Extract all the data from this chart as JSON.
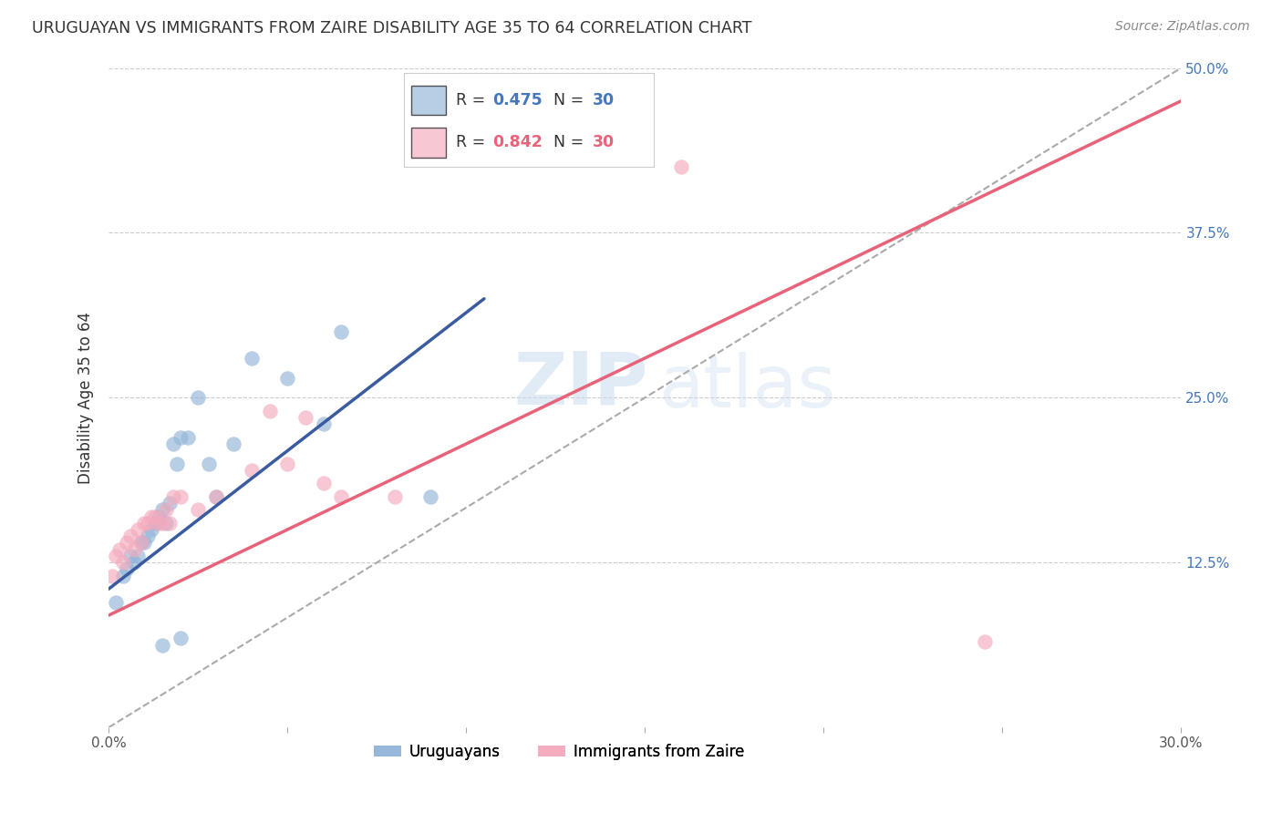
{
  "title": "URUGUAYAN VS IMMIGRANTS FROM ZAIRE DISABILITY AGE 35 TO 64 CORRELATION CHART",
  "source": "Source: ZipAtlas.com",
  "ylabel": "Disability Age 35 to 64",
  "x_min": 0.0,
  "x_max": 0.3,
  "y_min": 0.0,
  "y_max": 0.5,
  "x_ticks": [
    0.0,
    0.05,
    0.1,
    0.15,
    0.2,
    0.25,
    0.3
  ],
  "x_tick_labels": [
    "0.0%",
    "",
    "",
    "",
    "",
    "",
    "30.0%"
  ],
  "y_ticks": [
    0.0,
    0.125,
    0.25,
    0.375,
    0.5
  ],
  "y_tick_right_labels": [
    "",
    "12.5%",
    "25.0%",
    "37.5%",
    "50.0%"
  ],
  "blue_color": "#92B4D8",
  "pink_color": "#F4AABC",
  "blue_line_color": "#3A5BA0",
  "pink_line_color": "#E8637A",
  "blue_line_x": [
    0.0,
    0.105
  ],
  "blue_line_y": [
    0.105,
    0.325
  ],
  "pink_line_x": [
    0.0,
    0.3
  ],
  "pink_line_y": [
    0.085,
    0.475
  ],
  "diag_line_x": [
    0.0,
    0.3
  ],
  "diag_line_y": [
    0.0,
    0.5
  ],
  "uruguayan_label": "Uruguayans",
  "zaire_label": "Immigrants from Zaire",
  "uru_x": [
    0.002,
    0.004,
    0.005,
    0.006,
    0.007,
    0.008,
    0.009,
    0.01,
    0.011,
    0.012,
    0.013,
    0.014,
    0.015,
    0.016,
    0.017,
    0.018,
    0.019,
    0.02,
    0.022,
    0.025,
    0.028,
    0.03,
    0.035,
    0.04,
    0.05,
    0.06,
    0.065,
    0.09,
    0.015,
    0.02
  ],
  "uru_y": [
    0.095,
    0.115,
    0.12,
    0.13,
    0.125,
    0.13,
    0.14,
    0.14,
    0.145,
    0.15,
    0.155,
    0.16,
    0.165,
    0.155,
    0.17,
    0.215,
    0.2,
    0.22,
    0.22,
    0.25,
    0.2,
    0.175,
    0.215,
    0.28,
    0.265,
    0.23,
    0.3,
    0.175,
    0.062,
    0.068
  ],
  "zai_x": [
    0.001,
    0.002,
    0.003,
    0.004,
    0.005,
    0.006,
    0.007,
    0.008,
    0.009,
    0.01,
    0.011,
    0.012,
    0.013,
    0.014,
    0.015,
    0.016,
    0.017,
    0.018,
    0.02,
    0.025,
    0.03,
    0.04,
    0.045,
    0.05,
    0.055,
    0.06,
    0.065,
    0.08,
    0.16,
    0.245
  ],
  "zai_y": [
    0.115,
    0.13,
    0.135,
    0.125,
    0.14,
    0.145,
    0.135,
    0.15,
    0.14,
    0.155,
    0.155,
    0.16,
    0.16,
    0.155,
    0.155,
    0.165,
    0.155,
    0.175,
    0.175,
    0.165,
    0.175,
    0.195,
    0.24,
    0.2,
    0.235,
    0.185,
    0.175,
    0.175,
    0.425,
    0.065
  ]
}
